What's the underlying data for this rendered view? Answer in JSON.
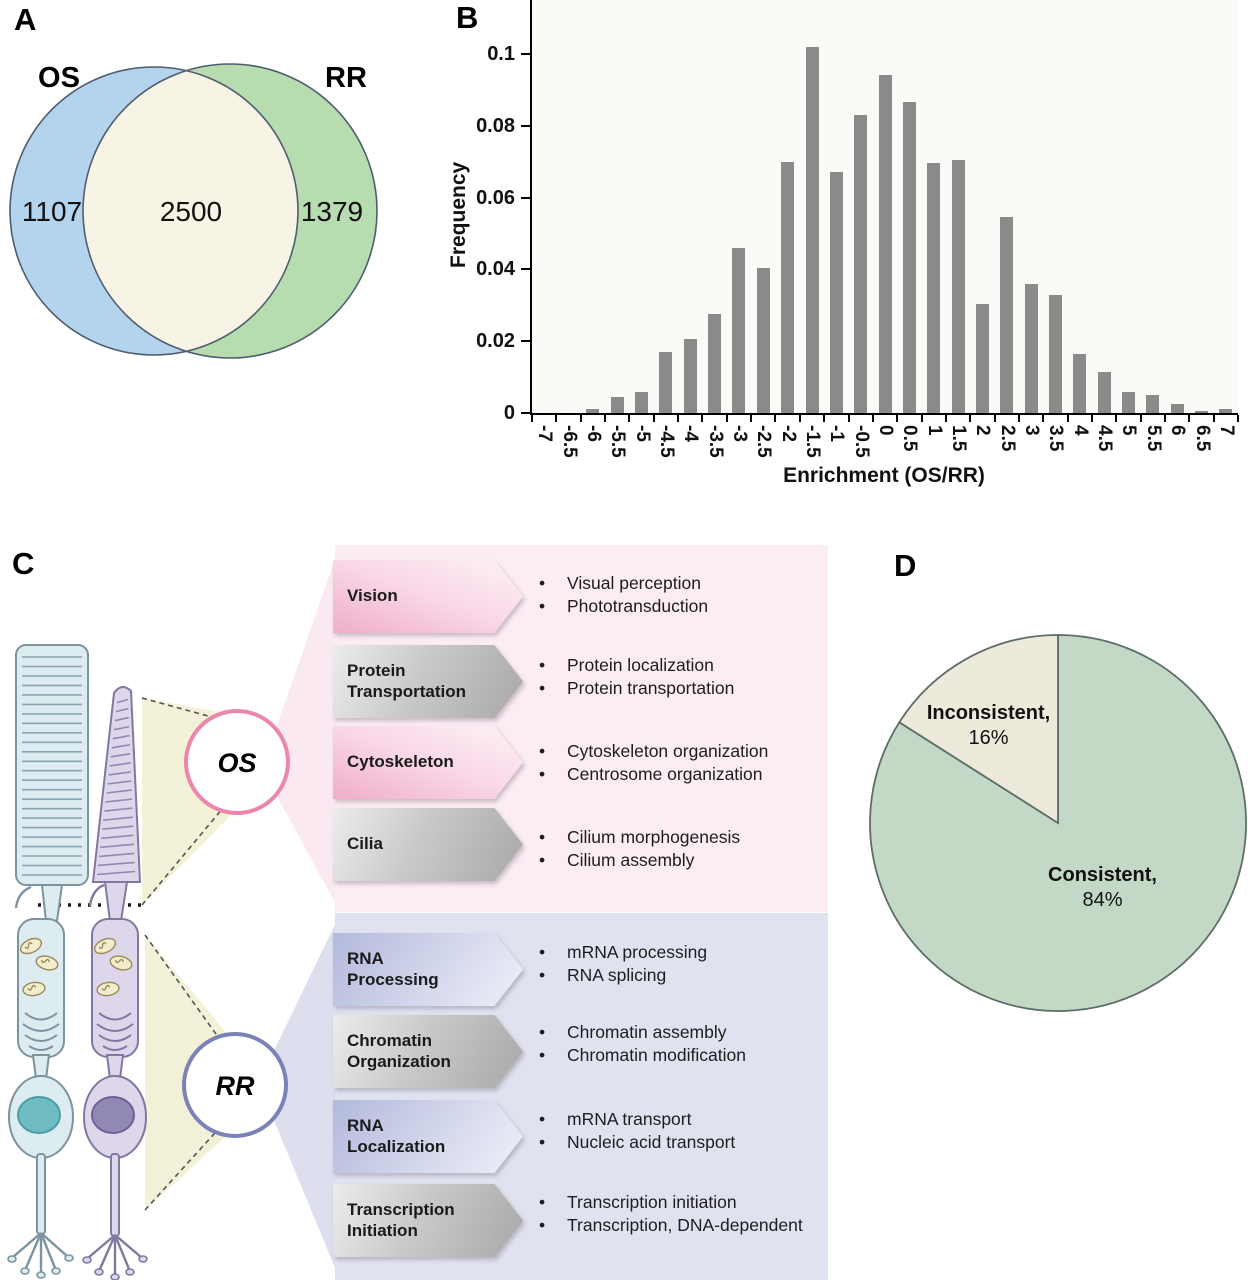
{
  "panels": {
    "a": "A",
    "b": "B",
    "c": "C",
    "d": "D"
  },
  "chart_data": [
    {
      "type": "venn",
      "title": "",
      "sets": [
        {
          "label": "OS",
          "unique_value": 1107,
          "color": "#b4d3ed"
        },
        {
          "label": "RR",
          "unique_value": 1379,
          "color": "#b6dcb0"
        }
      ],
      "overlap": {
        "value": 2500,
        "color": "#f7f4e5"
      },
      "outline_color": "#4e5d6e"
    },
    {
      "type": "bar",
      "title": "",
      "xlabel": "Enrichment (OS/RR)",
      "ylabel": "Frequency",
      "bar_color": "#8a8a8a",
      "plot_bg": "#fafaf6",
      "grid": false,
      "legend": false,
      "ylim": [
        0,
        0.115
      ],
      "yticks": [
        0,
        0.02,
        0.04,
        0.06,
        0.08,
        0.1
      ],
      "categories": [
        "-7",
        "-6.5",
        "-6",
        "-5.5",
        "-5",
        "-4.5",
        "-4",
        "-3.5",
        "-3",
        "-2.5",
        "-2",
        "-1.5",
        "-1",
        "-0.5",
        "0",
        "0.5",
        "1",
        "1.5",
        "2",
        "2.5",
        "3",
        "3.5",
        "4",
        "4.5",
        "5",
        "5.5",
        "6",
        "6.5",
        "7"
      ],
      "values": [
        0,
        0,
        0.001,
        0.0045,
        0.006,
        0.017,
        0.0205,
        0.0275,
        0.046,
        0.0405,
        0.07,
        0.102,
        0.067,
        0.083,
        0.094,
        0.0865,
        0.0695,
        0.0705,
        0.0305,
        0.0545,
        0.036,
        0.033,
        0.0165,
        0.0115,
        0.006,
        0.005,
        0.0025,
        0.0005,
        0.001
      ]
    },
    {
      "type": "pie",
      "start_angle_deg": 0,
      "direction": "clockwise",
      "stroke_color": "#5d6e68",
      "slices": [
        {
          "label": "Consistent",
          "pct": 84,
          "color": "#c3d9c6"
        },
        {
          "label": "Inconsistent",
          "pct": 16,
          "color": "#edeadb"
        }
      ]
    }
  ],
  "panel_c": {
    "cell_labels": {
      "os": "OS",
      "rr": "RR"
    },
    "os_groups": [
      {
        "label": "Vision",
        "tone": "pink",
        "items": [
          "Visual perception",
          "Phototransduction"
        ]
      },
      {
        "label": "Protein Transportation",
        "tone": "gray",
        "items": [
          "Protein localization",
          "Protein transportation"
        ]
      },
      {
        "label": "Cytoskeleton",
        "tone": "pink",
        "items": [
          "Cytoskeleton organization",
          "Centrosome organization"
        ]
      },
      {
        "label": "Cilia",
        "tone": "gray",
        "items": [
          "Cilium morphogenesis",
          "Cilium assembly"
        ]
      }
    ],
    "rr_groups": [
      {
        "label": "RNA Processing",
        "tone": "lavender",
        "items": [
          "mRNA processing",
          "RNA splicing"
        ]
      },
      {
        "label": "Chromatin Organization",
        "tone": "gray",
        "items": [
          "Chromatin assembly",
          "Chromatin modification"
        ]
      },
      {
        "label": "RNA Localization",
        "tone": "lavender",
        "items": [
          "mRNA transport",
          "Nucleic acid transport"
        ]
      },
      {
        "label": "Transcription Initiation",
        "tone": "gray",
        "items": [
          "Transcription initiation",
          "Transcription, DNA-dependent"
        ]
      }
    ]
  },
  "panel_d": {
    "labels": [
      {
        "name": "Inconsistent,",
        "pct": "16%"
      },
      {
        "name": "Consistent,",
        "pct": "84%"
      }
    ]
  }
}
